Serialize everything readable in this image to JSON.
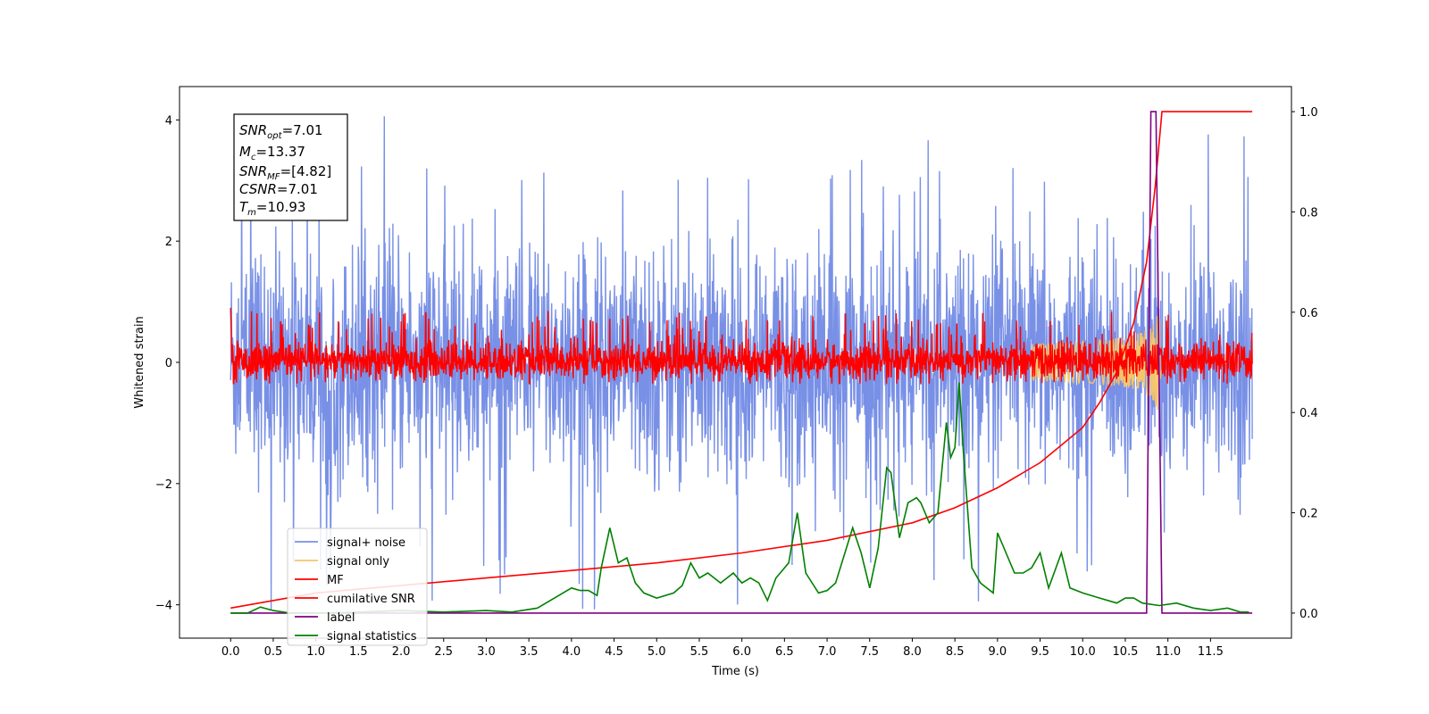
{
  "chart_data": {
    "type": "line",
    "title": "",
    "xlabel": "Time (s)",
    "ylabel": "Whitened strain",
    "xlim": [
      -0.6,
      12.45
    ],
    "ylim": [
      -4.55,
      4.55
    ],
    "ylim_right": [
      -0.05,
      1.05
    ],
    "grid": false,
    "legend_position": "lower-left",
    "x_ticks": [
      "0.0",
      "0.5",
      "1.0",
      "1.5",
      "2.0",
      "2.5",
      "3.0",
      "3.5",
      "4.0",
      "4.5",
      "5.0",
      "5.5",
      "6.0",
      "6.5",
      "7.0",
      "7.5",
      "8.0",
      "8.5",
      "9.0",
      "9.5",
      "10.0",
      "10.5",
      "11.0",
      "11.5"
    ],
    "y_ticks_left": [
      "−4",
      "−2",
      "0",
      "2",
      "4"
    ],
    "y_ticks_right": [
      "0.0",
      "0.2",
      "0.4",
      "0.6",
      "0.8",
      "1.0"
    ],
    "annotation": {
      "snr_opt": {
        "base": "SNR",
        "sub": "opt",
        "value": "=7.01"
      },
      "mc": {
        "base": "M",
        "sub": "c",
        "value": "=13.37"
      },
      "snr_mf": {
        "base": "SNR",
        "sub": "MF",
        "value": "=[4.82]"
      },
      "csnr": {
        "base": "CSNR",
        "sub": "",
        "value": "=7.01"
      },
      "tm": {
        "base": "T",
        "sub": "m",
        "value": "=10.93"
      }
    },
    "series": [
      {
        "name": "signal+ noise",
        "color": "#7890e6",
        "axis": "left",
        "x_range": [
          0.0,
          11.99
        ],
        "envelope": [
          -2.6,
          2.6
        ],
        "spike_extremes": [
          -4.1,
          4.1
        ],
        "description": "dense whitened noise"
      },
      {
        "name": "signal only",
        "color": "#f5c56e",
        "axis": "left",
        "chirp_peak_time": 10.9,
        "peak_amplitude": 0.9
      },
      {
        "name": "MF",
        "color": "#ff0000",
        "axis": "left",
        "x_range": [
          0.0,
          11.99
        ],
        "envelope": [
          -0.3,
          0.4
        ],
        "spike_extremes": [
          -0.35,
          0.9
        ]
      },
      {
        "name": "cumilative SNR",
        "color": "#ff0000",
        "axis": "right",
        "x": [
          0.0,
          1.0,
          2.0,
          3.0,
          4.0,
          5.0,
          6.0,
          7.0,
          8.0,
          8.5,
          9.0,
          9.5,
          10.0,
          10.2,
          10.4,
          10.6,
          10.75,
          10.85,
          10.93,
          11.99
        ],
        "y": [
          0.01,
          0.04,
          0.055,
          0.07,
          0.085,
          0.1,
          0.12,
          0.145,
          0.18,
          0.21,
          0.25,
          0.3,
          0.37,
          0.42,
          0.48,
          0.58,
          0.7,
          0.85,
          1.0,
          1.0
        ]
      },
      {
        "name": "label",
        "color": "#800080",
        "axis": "right",
        "x": [
          0.0,
          10.75,
          10.8,
          10.86,
          10.93,
          11.99
        ],
        "y": [
          0.0,
          0.0,
          1.0,
          1.0,
          0.0,
          0.0
        ]
      },
      {
        "name": "signal statistics",
        "color": "#008000",
        "axis": "right",
        "x": [
          0.0,
          0.2,
          0.35,
          0.5,
          0.7,
          1.0,
          1.5,
          2.0,
          2.5,
          3.0,
          3.3,
          3.6,
          3.8,
          3.9,
          4.0,
          4.1,
          4.2,
          4.3,
          4.35,
          4.45,
          4.55,
          4.65,
          4.75,
          4.85,
          5.0,
          5.2,
          5.3,
          5.4,
          5.5,
          5.6,
          5.75,
          5.9,
          6.0,
          6.1,
          6.2,
          6.3,
          6.4,
          6.55,
          6.65,
          6.75,
          6.9,
          7.0,
          7.1,
          7.3,
          7.4,
          7.5,
          7.6,
          7.7,
          7.75,
          7.85,
          7.95,
          8.05,
          8.1,
          8.2,
          8.3,
          8.4,
          8.45,
          8.5,
          8.55,
          8.6,
          8.7,
          8.8,
          8.95,
          9.0,
          9.1,
          9.2,
          9.3,
          9.4,
          9.5,
          9.6,
          9.75,
          9.85,
          10.0,
          10.2,
          10.4,
          10.5,
          10.6,
          10.7,
          10.9,
          11.1,
          11.3,
          11.5,
          11.7,
          11.85,
          11.95
        ],
        "y": [
          0.0,
          0.0,
          0.012,
          0.005,
          0.0,
          0.0,
          0.002,
          0.005,
          0.002,
          0.005,
          0.002,
          0.01,
          0.03,
          0.04,
          0.05,
          0.045,
          0.045,
          0.035,
          0.09,
          0.17,
          0.1,
          0.11,
          0.06,
          0.04,
          0.03,
          0.04,
          0.055,
          0.1,
          0.07,
          0.08,
          0.06,
          0.08,
          0.06,
          0.07,
          0.06,
          0.025,
          0.07,
          0.1,
          0.2,
          0.08,
          0.04,
          0.045,
          0.06,
          0.17,
          0.12,
          0.05,
          0.13,
          0.29,
          0.28,
          0.15,
          0.22,
          0.23,
          0.22,
          0.18,
          0.2,
          0.38,
          0.31,
          0.33,
          0.46,
          0.32,
          0.09,
          0.06,
          0.04,
          0.16,
          0.12,
          0.08,
          0.08,
          0.09,
          0.12,
          0.05,
          0.12,
          0.05,
          0.04,
          0.03,
          0.02,
          0.03,
          0.03,
          0.02,
          0.015,
          0.02,
          0.01,
          0.005,
          0.01,
          0.002,
          0.002
        ]
      }
    ]
  }
}
